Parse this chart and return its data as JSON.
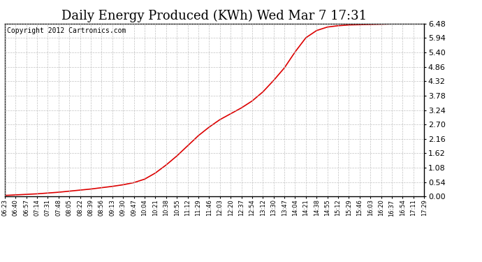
{
  "title": "Daily Energy Produced (KWh) Wed Mar 7 17:31",
  "copyright_text": "Copyright 2012 Cartronics.com",
  "line_color": "#dd0000",
  "background_color": "#ffffff",
  "grid_color": "#bbbbbb",
  "ylim": [
    0.0,
    6.48
  ],
  "yticks": [
    0.0,
    0.54,
    1.08,
    1.62,
    2.16,
    2.7,
    3.24,
    3.78,
    4.32,
    4.86,
    5.4,
    5.94,
    6.48
  ],
  "xtick_labels": [
    "06:23",
    "06:40",
    "06:57",
    "07:14",
    "07:31",
    "07:48",
    "08:05",
    "08:22",
    "08:39",
    "08:56",
    "09:13",
    "09:30",
    "09:47",
    "10:04",
    "10:21",
    "10:38",
    "10:55",
    "11:12",
    "11:29",
    "11:46",
    "12:03",
    "12:20",
    "12:37",
    "12:54",
    "13:12",
    "13:30",
    "13:47",
    "14:04",
    "14:21",
    "14:38",
    "14:55",
    "15:12",
    "15:29",
    "15:46",
    "16:03",
    "16:20",
    "16:37",
    "16:54",
    "17:11",
    "17:29"
  ],
  "x_values": [
    0,
    1,
    2,
    3,
    4,
    5,
    6,
    7,
    8,
    9,
    10,
    11,
    12,
    13,
    14,
    15,
    16,
    17,
    18,
    19,
    20,
    21,
    22,
    23,
    24,
    25,
    26,
    27,
    28,
    29,
    30,
    31,
    32,
    33,
    34,
    35,
    36,
    37,
    38,
    39
  ],
  "y_values": [
    0.04,
    0.06,
    0.08,
    0.1,
    0.13,
    0.16,
    0.2,
    0.24,
    0.28,
    0.33,
    0.38,
    0.44,
    0.52,
    0.65,
    0.88,
    1.18,
    1.52,
    1.9,
    2.28,
    2.6,
    2.88,
    3.1,
    3.32,
    3.58,
    3.92,
    4.35,
    4.82,
    5.42,
    5.95,
    6.22,
    6.35,
    6.4,
    6.43,
    6.44,
    6.45,
    6.46,
    6.47,
    6.47,
    6.48,
    6.48
  ],
  "title_fontsize": 13,
  "ytick_fontsize": 8,
  "xtick_fontsize": 6,
  "copyright_fontsize": 7
}
